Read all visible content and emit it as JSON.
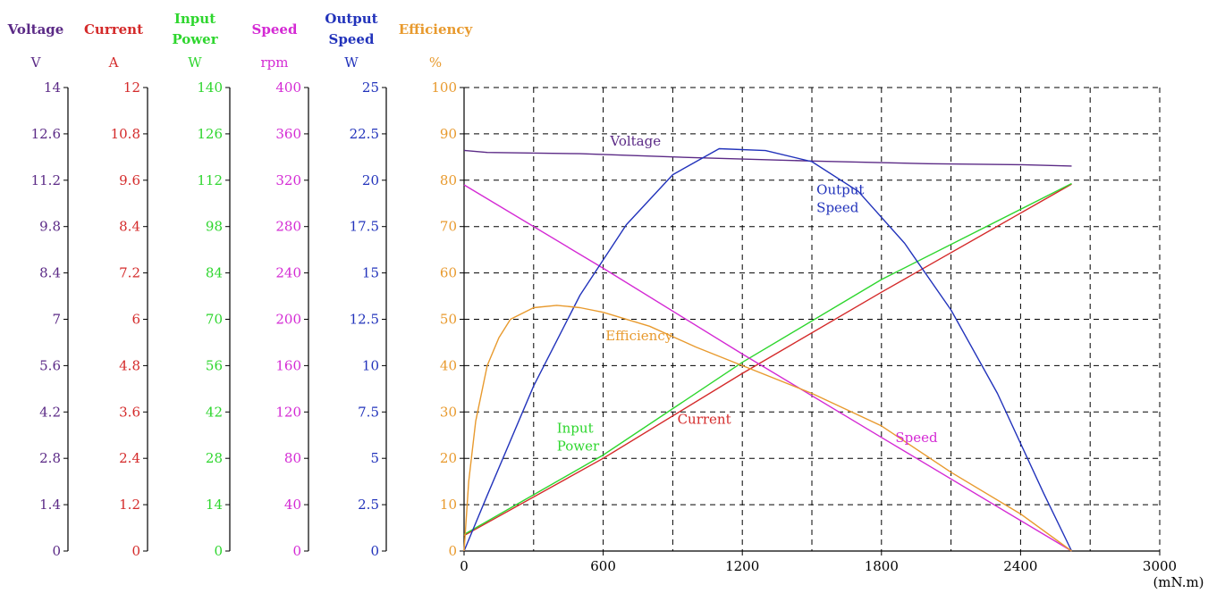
{
  "chart_data": {
    "type": "line",
    "x_axis": {
      "unit": "(mN.m)",
      "min": 0,
      "max": 3000,
      "ticks": [
        0,
        600,
        1200,
        1800,
        2400,
        3000
      ],
      "grid_step": 300
    },
    "y_axes": [
      {
        "id": "voltage",
        "header": [
          "Voltage"
        ],
        "unit": "V",
        "color": "#5b2a86",
        "max": 14,
        "ticks": [
          "0",
          "1.4",
          "2.8",
          "4.2",
          "5.6",
          "7",
          "8.4",
          "9.8",
          "11.2",
          "12.6",
          "14"
        ]
      },
      {
        "id": "current",
        "header": [
          "Current"
        ],
        "unit": "A",
        "color": "#d42a2a",
        "max": 12,
        "ticks": [
          "0",
          "1.2",
          "2.4",
          "3.6",
          "4.8",
          "6",
          "7.2",
          "8.4",
          "9.6",
          "10.8",
          "12"
        ]
      },
      {
        "id": "input_power",
        "header": [
          "Input",
          "Power"
        ],
        "unit": "W",
        "color": "#2ed62e",
        "max": 140,
        "ticks": [
          "0",
          "14",
          "28",
          "42",
          "56",
          "70",
          "84",
          "98",
          "112",
          "126",
          "140"
        ]
      },
      {
        "id": "speed",
        "header": [
          "Speed"
        ],
        "unit": "rpm",
        "color": "#d42ad4",
        "max": 400,
        "ticks": [
          "0",
          "40",
          "80",
          "120",
          "160",
          "200",
          "240",
          "280",
          "320",
          "360",
          "400"
        ]
      },
      {
        "id": "output_speed",
        "header": [
          "Output",
          "Speed"
        ],
        "unit": "W",
        "color": "#2233bb",
        "max": 25,
        "ticks": [
          "0",
          "2.5",
          "5",
          "7.5",
          "10",
          "12.5",
          "15",
          "17.5",
          "20",
          "22.5",
          "25"
        ]
      },
      {
        "id": "efficiency",
        "header": [
          "Efficiency"
        ],
        "unit": "%",
        "color": "#e89a2e",
        "max": 100,
        "ticks": [
          "0",
          "10",
          "20",
          "30",
          "40",
          "50",
          "60",
          "70",
          "80",
          "90",
          "100"
        ]
      }
    ],
    "grid": true,
    "series": [
      {
        "name": "Voltage",
        "axis": "voltage",
        "color": "#5b2a86",
        "x": [
          0,
          100,
          500,
          1000,
          1500,
          2000,
          2400,
          2620
        ],
        "y": [
          12.1,
          12.04,
          12.0,
          11.88,
          11.78,
          11.7,
          11.67,
          11.63
        ]
      },
      {
        "name": "Current",
        "axis": "current",
        "color": "#d42a2a",
        "x": [
          0,
          600,
          1200,
          1800,
          2620
        ],
        "y": [
          0.4,
          2.4,
          4.6,
          6.7,
          9.5
        ]
      },
      {
        "name": "Input Power",
        "axis": "input_power",
        "color": "#2ed62e",
        "x": [
          0,
          600,
          1200,
          1800,
          2620
        ],
        "y": [
          5,
          29,
          57,
          82,
          111
        ]
      },
      {
        "name": "Speed",
        "axis": "speed",
        "color": "#d42ad4",
        "x": [
          0,
          600,
          1200,
          1800,
          2620
        ],
        "y": [
          316,
          244,
          170,
          98,
          0
        ]
      },
      {
        "name": "Output Speed",
        "axis": "output_speed",
        "color": "#2233bb",
        "x": [
          0,
          100,
          300,
          500,
          700,
          900,
          1100,
          1300,
          1500,
          1700,
          1900,
          2100,
          2300,
          2500,
          2620
        ],
        "y": [
          0,
          3.0,
          8.9,
          13.8,
          17.6,
          20.3,
          21.7,
          21.6,
          21.0,
          19.4,
          16.6,
          13.0,
          8.5,
          3.1,
          0
        ]
      },
      {
        "name": "Efficiency",
        "axis": "efficiency",
        "color": "#e89a2e",
        "x": [
          0,
          20,
          50,
          100,
          150,
          200,
          300,
          400,
          500,
          600,
          800,
          1000,
          1200,
          1500,
          1800,
          2100,
          2400,
          2620
        ],
        "y": [
          0,
          15,
          28,
          40,
          46,
          50,
          52.5,
          53,
          52.5,
          51.5,
          48.5,
          44,
          40,
          34,
          27,
          17,
          8,
          0
        ]
      }
    ],
    "annotations": [
      {
        "text": [
          "Voltage"
        ],
        "color": "#5b2a86",
        "x": 630,
        "y": 87.5
      },
      {
        "text": [
          "Output",
          "Speed"
        ],
        "color": "#2233bb",
        "x": 1520,
        "y": 77
      },
      {
        "text": [
          "Efficiency"
        ],
        "color": "#e89a2e",
        "x": 610,
        "y": 45.5
      },
      {
        "text": [
          "Current"
        ],
        "color": "#d42a2a",
        "x": 920,
        "y": 27.5
      },
      {
        "text": [
          "Input",
          "Power"
        ],
        "color": "#2ed62e",
        "x": 400,
        "y": 25.5
      },
      {
        "text": [
          "Speed"
        ],
        "color": "#d42ad4",
        "x": 1860,
        "y": 23.5
      }
    ]
  }
}
